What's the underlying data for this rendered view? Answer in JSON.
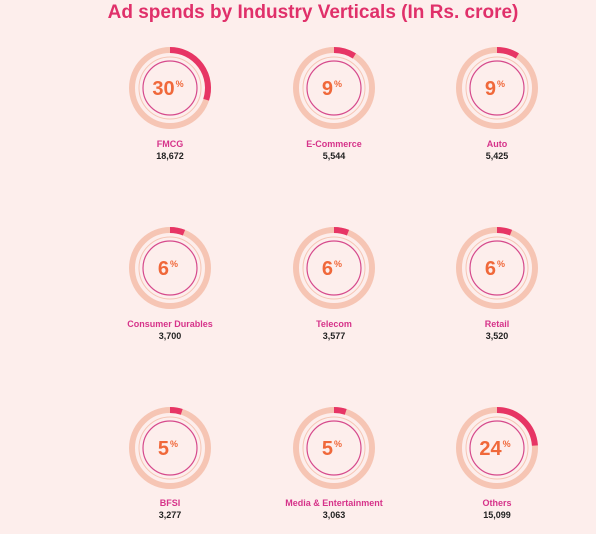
{
  "title": "Ad spends by Industry Verticals (In Rs. crore)",
  "colors": {
    "background": "#fdeeec",
    "track": "#f6c5b4",
    "arc": "#e73565",
    "inner_ring": "#d64a8c",
    "percent": "#f0683a",
    "label": "#d6338a",
    "value": "#222222"
  },
  "chart_data": {
    "type": "donut",
    "title": "Ad spends by Industry Verticals (In Rs. crore)",
    "unit": "Rs. crore",
    "items": [
      {
        "label": "FMCG",
        "value": "18,672",
        "percent": 30,
        "percent_text": "30"
      },
      {
        "label": "E-Commerce",
        "value": "5,544",
        "percent": 9,
        "percent_text": "9"
      },
      {
        "label": "Auto",
        "value": "5,425",
        "percent": 9,
        "percent_text": "9"
      },
      {
        "label": "Consumer Durables",
        "value": "3,700",
        "percent": 6,
        "percent_text": "6"
      },
      {
        "label": "Telecom",
        "value": "3,577",
        "percent": 6,
        "percent_text": "6"
      },
      {
        "label": "Retail",
        "value": "3,520",
        "percent": 6,
        "percent_text": "6"
      },
      {
        "label": "BFSI",
        "value": "3,277",
        "percent": 5,
        "percent_text": "5"
      },
      {
        "label": "Media & Entertainment",
        "value": "3,063",
        "percent": 5,
        "percent_text": "5"
      },
      {
        "label": "Others",
        "value": "15,099",
        "percent": 24,
        "percent_text": "24"
      }
    ],
    "percent_sign": "%"
  }
}
